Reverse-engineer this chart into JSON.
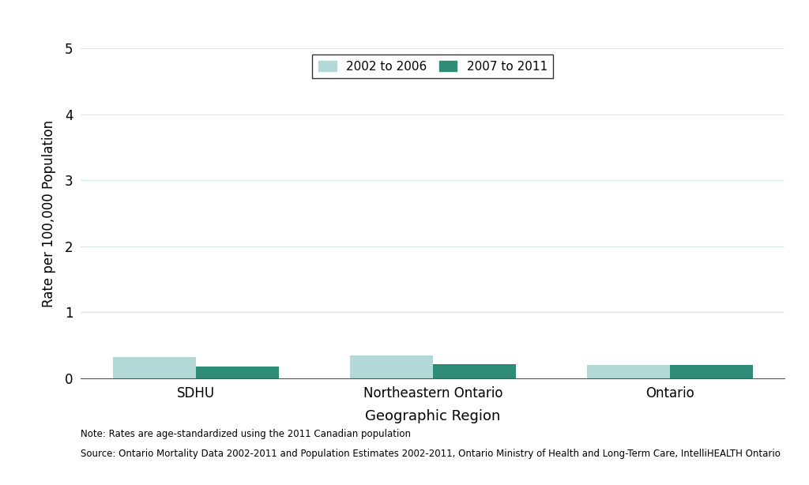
{
  "categories": [
    "SDHU",
    "Northeastern Ontario",
    "Ontario"
  ],
  "values_2002_2006": [
    0.32,
    0.35,
    0.2
  ],
  "values_2007_2011": [
    0.18,
    0.22,
    0.2
  ],
  "color_2002_2006": "#b2d8d8",
  "color_2007_2011": "#2e8b77",
  "ylabel": "Rate per 100,000 Population",
  "xlabel": "Geographic Region",
  "ylim": [
    0,
    5
  ],
  "yticks": [
    0,
    1,
    2,
    3,
    4,
    5
  ],
  "legend_labels": [
    "2002 to 2006",
    "2007 to 2011"
  ],
  "note1": "Note: Rates are age-standardized using the 2011 Canadian population",
  "note2": "Source: Ontario Mortality Data 2002-2011 and Population Estimates 2002-2011, Ontario Ministry of Health and Long-Term Care, IntelliHEALTH Ontario",
  "bar_width": 0.35,
  "background_color": "#ffffff",
  "grid_color": "#d0e8e8",
  "figsize": [
    10.24,
    6.14
  ],
  "dpi": 100
}
